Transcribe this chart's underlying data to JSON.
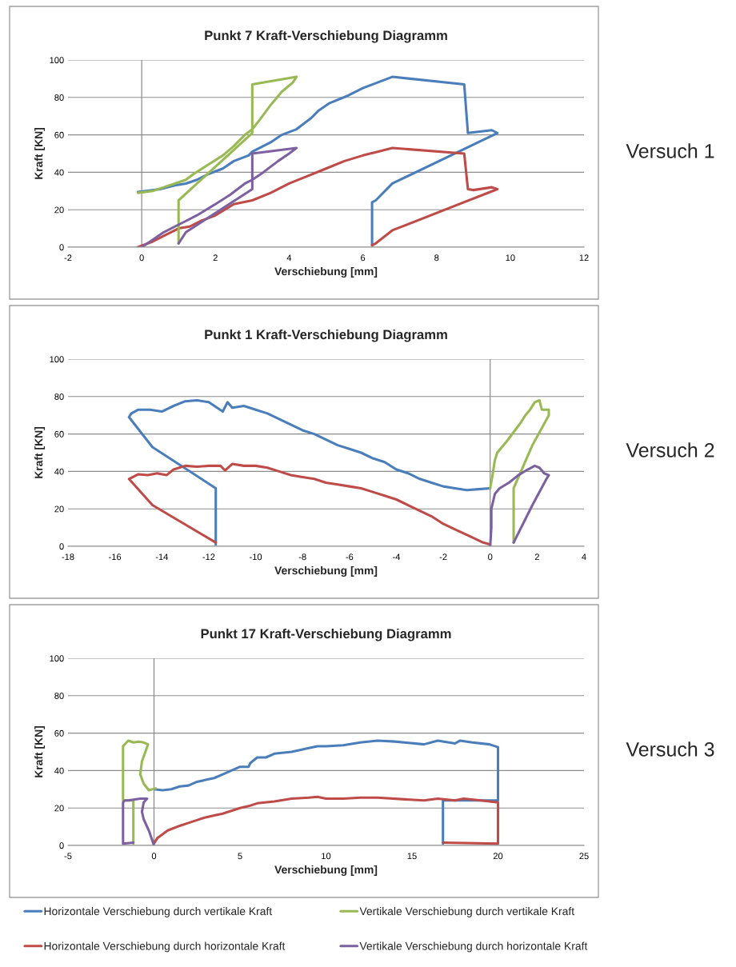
{
  "chart_data": [
    {
      "type": "line",
      "title": "Punkt 7 Kraft-Verschiebung Diagramm",
      "xlabel": "Verschiebung [mm]",
      "ylabel": "Kraft [KN]",
      "annotations": [
        "Versuch 1"
      ],
      "xlim": [
        -2,
        12
      ],
      "xticks": [
        -2,
        0,
        2,
        4,
        6,
        8,
        10,
        12
      ],
      "ylim": [
        0,
        100
      ],
      "yticks": [
        0,
        20,
        40,
        60,
        80,
        100
      ],
      "grid": "y",
      "marker": "none",
      "line_style": "solid",
      "ref_lines": [
        {
          "axis": "x",
          "value": 0,
          "color": "#808080"
        }
      ],
      "series": [
        {
          "color": "#4a7ebb",
          "x": [
            -0.1,
            0.5,
            0.9,
            1.2,
            1.5,
            1.8,
            2.2,
            2.5,
            2.9,
            3.0,
            3.5,
            3.8,
            4.2,
            4.6,
            4.8,
            5.1,
            5.6,
            6.0,
            6.4,
            6.8,
            8.75,
            8.85,
            9.5,
            9.65,
            6.8,
            6.35,
            6.25,
            6.25
          ],
          "values": [
            29.5,
            31,
            33,
            34,
            36,
            39,
            42,
            46,
            49,
            51,
            56,
            60,
            63,
            69,
            73,
            77,
            81,
            85,
            88,
            91,
            87,
            61,
            62.5,
            61,
            34,
            25,
            24,
            1
          ]
        },
        {
          "color": "#be4b48",
          "x": [
            -0.1,
            0.3,
            0.6,
            1.0,
            1.3,
            1.6,
            2.0,
            2.5,
            3.0,
            3.5,
            4.0,
            4.5,
            5.0,
            5.5,
            6.0,
            6.4,
            6.8,
            8.75,
            8.85,
            9.0,
            9.5,
            9.65,
            6.8,
            6.35,
            6.25
          ],
          "values": [
            0,
            3,
            6,
            10,
            11,
            14,
            17,
            23,
            25,
            29,
            34,
            38,
            42,
            46,
            49,
            51,
            53,
            50,
            31,
            30.5,
            32,
            31,
            9,
            2,
            1
          ]
        },
        {
          "color": "#98b954",
          "x": [
            -0.1,
            0.3,
            0.6,
            0.9,
            1.2,
            1.4,
            1.8,
            2.2,
            2.5,
            2.8,
            3.0,
            3.2,
            3.5,
            3.8,
            4.1,
            4.2,
            3.0,
            3.0,
            1.0,
            1.0
          ],
          "values": [
            29,
            30,
            32,
            34,
            36,
            39,
            44,
            49,
            54,
            60,
            63,
            68,
            76,
            83,
            88,
            91,
            87,
            61,
            25,
            2
          ]
        },
        {
          "color": "#7d60a0",
          "x": [
            0,
            0.3,
            0.6,
            0.9,
            1.2,
            1.5,
            2.0,
            2.4,
            2.8,
            3.0,
            3.3,
            3.7,
            4.0,
            4.2,
            3.0,
            3.0,
            1.2,
            1.0
          ],
          "values": [
            0,
            4,
            8,
            11,
            14,
            17,
            23,
            28,
            34,
            36,
            40,
            46,
            50,
            53,
            50,
            31,
            8,
            2
          ]
        }
      ]
    },
    {
      "type": "line",
      "title": "Punkt 1 Kraft-Verschiebung Diagramm",
      "xlabel": "Verschiebung [mm]",
      "ylabel": "Kraft [KN]",
      "annotations": [
        "Versuch 2"
      ],
      "xlim": [
        -18,
        4
      ],
      "xticks": [
        -18,
        -16,
        -14,
        -12,
        -10,
        -8,
        -6,
        -4,
        -2,
        0,
        2,
        4
      ],
      "ylim": [
        0,
        100
      ],
      "yticks": [
        0,
        20,
        40,
        60,
        80,
        100
      ],
      "grid": "y",
      "marker": "none",
      "line_style": "solid",
      "ref_lines": [
        {
          "axis": "x",
          "value": 0,
          "color": "#808080"
        }
      ],
      "series": [
        {
          "color": "#4a7ebb",
          "x": [
            0,
            -0.5,
            -1,
            -1.5,
            -2,
            -2.5,
            -3,
            -3.5,
            -4,
            -4.5,
            -5,
            -5.5,
            -6,
            -6.5,
            -7,
            -7.5,
            -8,
            -8.5,
            -9,
            -9.5,
            -10,
            -10.5,
            -11,
            -11.2,
            -11.4,
            -12,
            -12.5,
            -13,
            -13.5,
            -14,
            -14.5,
            -15,
            -15.3,
            -15.4,
            -14.4,
            -11.7,
            -11.7
          ],
          "values": [
            31,
            30.5,
            30,
            31,
            32,
            34,
            36,
            39,
            41,
            45,
            47,
            50,
            52,
            54,
            57,
            60,
            62,
            65,
            68,
            71,
            73,
            75,
            74,
            77,
            72,
            77,
            78,
            77.5,
            75,
            72,
            73,
            73,
            71,
            69,
            53,
            31,
            1
          ]
        },
        {
          "color": "#be4b48",
          "x": [
            0,
            -0.3,
            -0.8,
            -1.5,
            -2.0,
            -2.5,
            -3.0,
            -3.5,
            -4,
            -4.5,
            -5,
            -5.5,
            -6,
            -6.5,
            -7,
            -7.5,
            -8,
            -8.5,
            -9,
            -9.5,
            -10,
            -10.5,
            -11,
            -11.3,
            -11.5,
            -12,
            -12.5,
            -13,
            -13.5,
            -13.8,
            -14.2,
            -14.6,
            -15,
            -15.4,
            -14.4,
            -11.7
          ],
          "values": [
            1,
            2,
            5,
            9,
            12,
            16,
            19,
            22,
            25,
            27,
            29,
            31,
            32,
            33,
            34,
            36,
            37,
            38,
            40,
            42,
            43,
            43,
            44,
            40.5,
            43,
            43,
            42.5,
            43,
            41,
            38,
            39,
            38,
            38.5,
            36,
            22,
            2
          ]
        },
        {
          "color": "#98b954",
          "x": [
            0,
            0.1,
            0.2,
            0.3,
            0.7,
            1.0,
            1.3,
            1.5,
            1.7,
            1.9,
            2.1,
            2.2,
            2.5,
            2.5,
            1.8,
            1.0,
            1.0
          ],
          "values": [
            31,
            38,
            46,
            50,
            56,
            61,
            66,
            70,
            73,
            77,
            78,
            73,
            73,
            70,
            54,
            31,
            2
          ]
        },
        {
          "color": "#7d60a0",
          "x": [
            0,
            0.05,
            0.05,
            0.2,
            0.4,
            0.8,
            1.2,
            1.6,
            1.9,
            2.1,
            2.3,
            2.5,
            2.4,
            1.8,
            1.0
          ],
          "values": [
            0,
            10,
            20,
            28,
            31,
            34,
            38,
            41,
            43,
            42,
            39,
            38,
            36,
            22,
            2
          ]
        }
      ]
    },
    {
      "type": "line",
      "title": "Punkt 17 Kraft-Verschiebung Diagramm",
      "xlabel": "Verschiebung [mm]",
      "ylabel": "Kraft [KN]",
      "annotations": [
        "Versuch 3"
      ],
      "xlim": [
        -5,
        25
      ],
      "xticks": [
        -5,
        0,
        5,
        10,
        15,
        20,
        25
      ],
      "ylim": [
        0,
        100
      ],
      "yticks": [
        0,
        20,
        40,
        60,
        80,
        100
      ],
      "grid": "y",
      "marker": "none",
      "line_style": "solid",
      "legend": "bottom",
      "ref_lines": [
        {
          "axis": "x",
          "value": 0,
          "color": "#808080"
        }
      ],
      "series": [
        {
          "name": "Horizontale Verschiebung durch vertikale Kraft",
          "color": "#4a7ebb",
          "x": [
            0,
            0.5,
            1,
            1.5,
            2,
            2.5,
            3,
            3.5,
            4,
            4.5,
            5,
            5.5,
            5.6,
            6,
            6.5,
            7,
            8,
            9,
            9.5,
            10,
            11,
            12,
            13,
            14,
            15.7,
            16.5,
            17.5,
            17.8,
            18.5,
            19.5,
            20,
            20,
            16.8,
            16.8
          ],
          "values": [
            30,
            29.5,
            30,
            31.5,
            32,
            34,
            35,
            36,
            38,
            40,
            42,
            42,
            44,
            47,
            47,
            49,
            50,
            52,
            53,
            53,
            53.5,
            55,
            56,
            55.5,
            54,
            56,
            54.5,
            56,
            55,
            54,
            52.5,
            24,
            24,
            1
          ]
        },
        {
          "name": "Horizontale Verschiebung durch horizontale Kraft",
          "color": "#be4b48",
          "x": [
            0,
            0.2,
            0.8,
            1.5,
            2,
            2.5,
            3,
            3.5,
            4,
            5,
            5.5,
            6,
            7,
            8,
            9,
            9.5,
            10,
            11,
            12,
            13,
            15.7,
            16.5,
            17.5,
            18,
            19,
            20,
            20,
            16.8
          ],
          "values": [
            1,
            4,
            8,
            10.5,
            12,
            13.5,
            15,
            16,
            17,
            20,
            21,
            22.5,
            23.5,
            25,
            25.5,
            26,
            25,
            25,
            25.5,
            25.5,
            24,
            25,
            24,
            25,
            24,
            23,
            1,
            1.5
          ]
        },
        {
          "name": "Vertikale Verschiebung durch vertikale Kraft",
          "color": "#98b954",
          "x": [
            0.1,
            -0.3,
            -0.6,
            -0.8,
            -0.7,
            -0.5,
            -0.35,
            -0.6,
            -0.9,
            -1.2,
            -1.5,
            -1.8,
            -1.8,
            -1.2,
            -1.2
          ],
          "values": [
            30.5,
            29.5,
            33,
            38,
            45,
            50,
            54,
            55,
            55.5,
            55,
            56,
            53,
            24,
            24,
            1
          ]
        },
        {
          "name": "Vertikale Verschiebung durch horizontale Kraft",
          "color": "#7d60a0",
          "x": [
            0,
            -0.3,
            -0.6,
            -0.7,
            -0.6,
            -0.4,
            -0.8,
            -1.5,
            -1.7,
            -1.8,
            -1.8,
            -1.2
          ],
          "values": [
            0,
            8,
            14,
            18,
            23,
            25,
            25,
            24,
            24,
            23,
            1,
            1.5
          ]
        }
      ]
    }
  ]
}
